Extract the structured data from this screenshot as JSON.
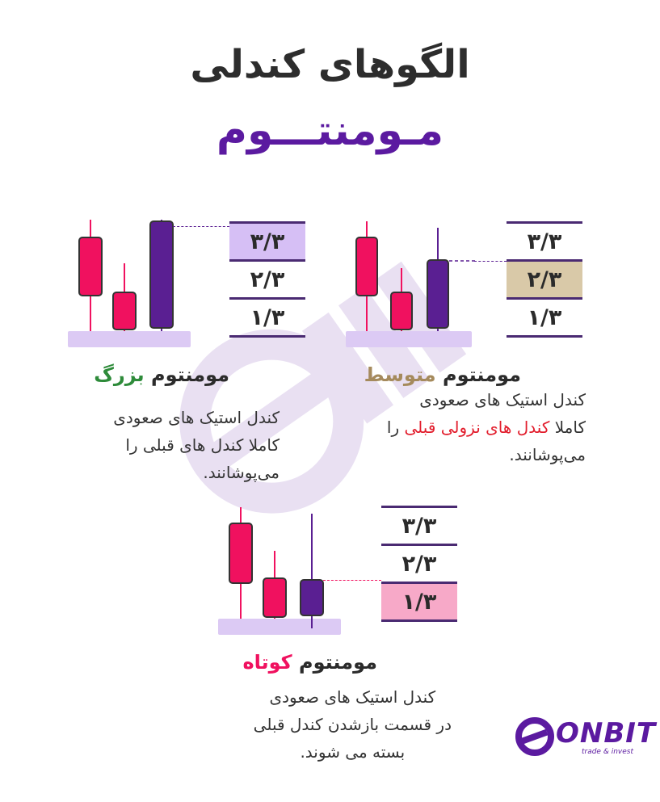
{
  "title": "الگوهای کندلی",
  "subtitle": "مـومنتـــوم",
  "tables": {
    "labels": [
      "۳/۳",
      "۲/۳",
      "۱/۳"
    ]
  },
  "sections": {
    "medium": {
      "heading_prefix": "مومنتوم",
      "heading_type": "متوسط",
      "line1": "کندل استیک های صعودی",
      "line2_start": "کاملا",
      "line2_highlight": "کندل های نزولی قبلی",
      "line2_end": "را",
      "line3": "می‌پوشانند."
    },
    "large": {
      "heading_prefix": "مومنتوم",
      "heading_type": "بزرگ",
      "line1": "کندل استیک های صعودی",
      "line2": "کاملا کندل های قبلی  را",
      "line3": "می‌پوشانند."
    },
    "short": {
      "heading_prefix": "مومنتوم",
      "heading_type": "کوتاه",
      "line1": "کندل استیک های صعودی",
      "line2": "در قسمت بازشدن کندل قبلی",
      "line3": "بسته می شوند."
    }
  },
  "logo": {
    "name": "ONBIT",
    "tagline": "trade & invest"
  },
  "colors": {
    "purple": "#5b1aa0",
    "candle_bear": "#f0115f",
    "candle_bull": "#5a1f92",
    "base": "#dccaf4",
    "large_type": "#2e8b3a",
    "medium_type": "#a58a5c",
    "short_type": "#f0115f",
    "highlight_33": "#d6bff5",
    "highlight_23": "#d9c9a8",
    "highlight_13": "#f7a9c8"
  }
}
